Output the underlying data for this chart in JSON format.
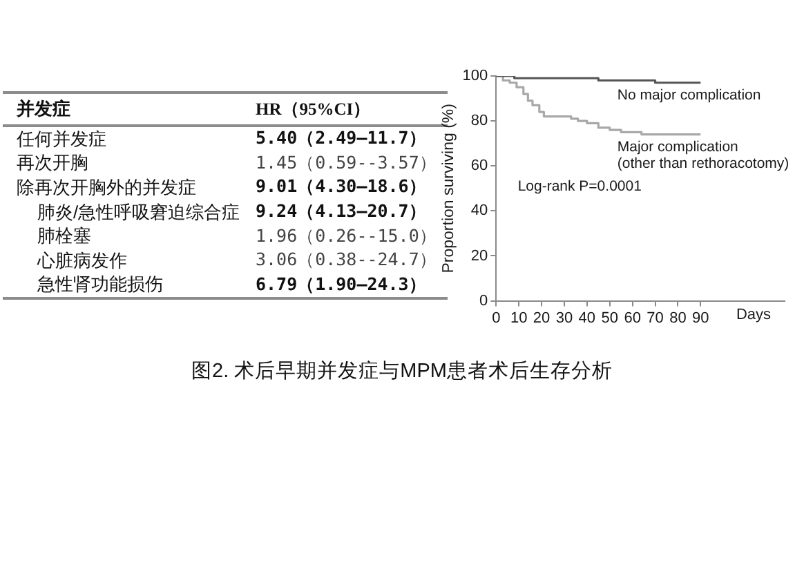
{
  "chart_data": [
    {
      "type": "other",
      "annotations": [
        "并发症",
        "HR（95%CI）",
        "任何并发症",
        "5.40（2.49—11.7）",
        "再次开胸",
        "1.45（0.59--3.57）",
        "除再次开胸外的并发症",
        "9.01（4.30—18.6）",
        "肺炎/急性呼吸窘迫综合症",
        "9.24（4.13—20.7）",
        "肺栓塞",
        "1.96（0.26--15.0）",
        "心脏病发作",
        "3.06（0.38--24.7）",
        "急性肾功能损伤",
        "6.79（1.90—24.3）"
      ]
    },
    {
      "type": "step",
      "xlabel": "Days",
      "ylabel": "Proportion surviving (%)",
      "annotations": [
        "Log-rank P=0.0001"
      ],
      "series": [
        {
          "name": "No major complication",
          "color": "#555555",
          "x": [
            0,
            8,
            45,
            70,
            90
          ],
          "values": [
            100,
            99,
            98,
            97,
            97
          ]
        },
        {
          "name": "Major complication\n(other than rethoracotomy)",
          "color": "#a8a8a8",
          "x": [
            0,
            3,
            6,
            9,
            12,
            14,
            16,
            19,
            21,
            33,
            36,
            40,
            45,
            50,
            55,
            64,
            90
          ],
          "values": [
            100,
            98,
            97,
            95,
            92,
            89,
            87,
            84,
            82,
            81,
            80,
            79,
            77,
            76,
            75,
            74,
            74
          ]
        }
      ],
      "xlim": [
        0,
        127
      ],
      "xticks": [
        0,
        10,
        20,
        30,
        40,
        50,
        60,
        70,
        80,
        90
      ],
      "ylim": [
        0,
        100
      ],
      "yticks": [
        0,
        20,
        40,
        60,
        80,
        100
      ],
      "grid": false,
      "legend": false,
      "marker": "none",
      "line_style": "solid"
    },
    {
      "type": "other",
      "title": "图2. 术后早期并发症与MPM患者术后生存分析"
    }
  ]
}
